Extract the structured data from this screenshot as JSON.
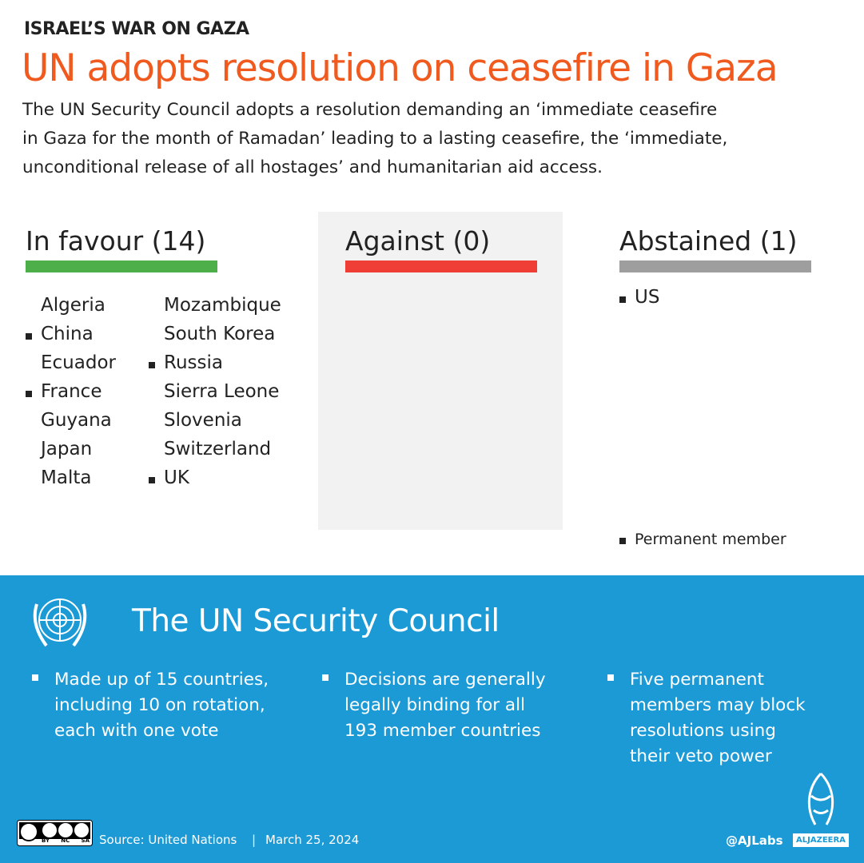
{
  "header": {
    "kicker": "ISRAEL’S WAR ON GAZA",
    "title": "UN adopts resolution on ceasefire in Gaza",
    "subtitle_lines": [
      "The UN Security Council adopts a resolution demanding an ‘immediate ceasefire",
      "in Gaza for the month of Ramadan’ leading to a lasting ceasefire, the ‘immediate,",
      "unconditional release of all hostages’ and humanitarian aid access."
    ]
  },
  "votes": [
    {
      "title": "In favour (14)",
      "color": "#4caf4a",
      "countries": [
        {
          "name": "Algeria",
          "permanent": false
        },
        {
          "name": "China",
          "permanent": true
        },
        {
          "name": "Ecuador",
          "permanent": false
        },
        {
          "name": "France",
          "permanent": true
        },
        {
          "name": "Guyana",
          "permanent": false
        },
        {
          "name": "Japan",
          "permanent": false
        },
        {
          "name": "Malta",
          "permanent": false
        },
        {
          "name": "Mozambique",
          "permanent": false
        },
        {
          "name": "South Korea",
          "permanent": false
        },
        {
          "name": "Russia",
          "permanent": true
        },
        {
          "name": "Sierra Leone",
          "permanent": false
        },
        {
          "name": "Slovenia",
          "permanent": false
        },
        {
          "name": "Switzerland",
          "permanent": false
        },
        {
          "name": "UK",
          "permanent": true
        }
      ]
    },
    {
      "title": "Against (0)",
      "color": "#ef3e36",
      "countries": []
    },
    {
      "title": "Abstained (1)",
      "color": "#9e9e9e",
      "countries": [
        {
          "name": "US",
          "permanent": true
        }
      ]
    }
  ],
  "legend": "Permanent member",
  "council": {
    "title": "The UN Security Council",
    "points": [
      [
        "Made up of 15 countries,",
        "including 10 on rotation,",
        "each with one vote"
      ],
      [
        "Decisions are generally",
        "legally binding for all",
        "193 member countries"
      ],
      [
        "Five permanent",
        "members may block",
        "resolutions using",
        "their veto power"
      ]
    ]
  },
  "footer": {
    "cc_labels": [
      "BY",
      "NC",
      "SA"
    ],
    "source": "Source: United Nations",
    "separator": "|",
    "date": "March 25, 2024",
    "handle": "@AJLabs",
    "logo": "ALJAZEERA"
  }
}
